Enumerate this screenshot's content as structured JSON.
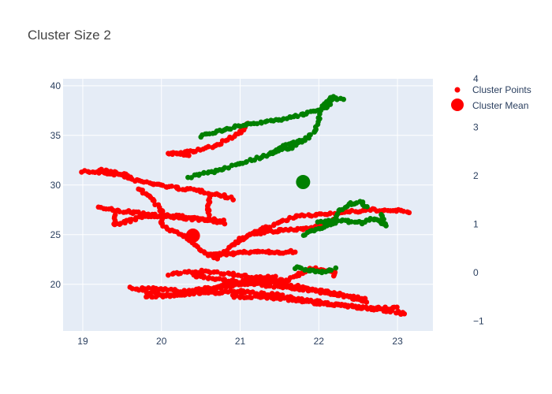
{
  "chart_data": {
    "type": "scatter",
    "title": "Cluster Size 2",
    "xlabel": "",
    "ylabel": "",
    "xlim": [
      18.75,
      23.45
    ],
    "ylim": [
      15.3,
      40.7
    ],
    "y2lim": [
      -1.2,
      4.0
    ],
    "x_ticks": [
      19,
      20,
      21,
      22,
      23
    ],
    "y_ticks": [
      20,
      25,
      30,
      35,
      40
    ],
    "y2_ticks": [
      -1,
      0,
      1,
      2,
      3,
      4
    ],
    "grid": true,
    "legend_position": "top-right",
    "legend": [
      "Cluster Points",
      "Cluster Mean"
    ],
    "colors": {
      "red": "#ff0000",
      "green": "#008000",
      "plot_bg": "#e5ecf6",
      "grid": "#ffffff"
    },
    "series": [
      {
        "name": "Cluster Points",
        "color": "#ff0000",
        "mode": "markers",
        "paths": [
          [
            [
              19.0,
              31.4
            ],
            [
              19.3,
              31.2
            ],
            [
              19.5,
              31.0
            ],
            [
              19.6,
              30.6
            ],
            [
              19.9,
              30.1
            ],
            [
              20.2,
              29.7
            ],
            [
              20.5,
              29.4
            ],
            [
              20.8,
              28.9
            ],
            [
              20.9,
              28.6
            ]
          ],
          [
            [
              19.2,
              31.6
            ],
            [
              19.4,
              31.3
            ],
            [
              19.6,
              30.9
            ]
          ],
          [
            [
              19.2,
              27.7
            ],
            [
              19.45,
              27.4
            ],
            [
              19.9,
              27.0
            ],
            [
              20.3,
              26.8
            ],
            [
              20.8,
              26.4
            ]
          ],
          [
            [
              19.4,
              27.3
            ],
            [
              19.4,
              26.0
            ],
            [
              19.6,
              26.4
            ],
            [
              19.8,
              26.9
            ],
            [
              20.4,
              26.6
            ],
            [
              20.8,
              26.2
            ]
          ],
          [
            [
              19.7,
              29.7
            ],
            [
              19.9,
              28.5
            ],
            [
              20.0,
              27.3
            ],
            [
              20.0,
              26.1
            ],
            [
              20.1,
              25.5
            ],
            [
              20.3,
              24.8
            ],
            [
              20.4,
              24.2
            ],
            [
              20.5,
              23.4
            ],
            [
              20.7,
              22.6
            ]
          ],
          [
            [
              20.1,
              33.1
            ],
            [
              20.4,
              33.4
            ],
            [
              20.7,
              34.0
            ],
            [
              21.0,
              35.3
            ],
            [
              21.1,
              36.2
            ]
          ],
          [
            [
              20.1,
              33.2
            ],
            [
              20.35,
              33.0
            ]
          ],
          [
            [
              20.6,
              28.8
            ],
            [
              20.6,
              27.6
            ],
            [
              20.6,
              26.5
            ]
          ],
          [
            [
              20.7,
              22.7
            ],
            [
              20.9,
              23.9
            ],
            [
              21.0,
              24.6
            ],
            [
              21.2,
              25.1
            ],
            [
              21.5,
              25.4
            ],
            [
              21.8,
              25.6
            ],
            [
              22.0,
              26.0
            ],
            [
              22.2,
              26.5
            ]
          ],
          [
            [
              21.0,
              24.5
            ],
            [
              21.3,
              25.6
            ],
            [
              21.7,
              26.8
            ],
            [
              21.95,
              27.0
            ],
            [
              22.4,
              27.3
            ],
            [
              22.7,
              27.5
            ],
            [
              23.0,
              27.4
            ],
            [
              23.15,
              27.3
            ]
          ],
          [
            [
              20.1,
              21.0
            ],
            [
              20.5,
              21.3
            ],
            [
              20.9,
              21.0
            ],
            [
              21.2,
              20.7
            ],
            [
              21.4,
              20.4
            ],
            [
              21.6,
              20.4
            ],
            [
              21.75,
              21.0
            ],
            [
              21.9,
              21.6
            ],
            [
              22.2,
              21.3
            ],
            [
              22.2,
              20.9
            ]
          ],
          [
            [
              20.6,
              22.9
            ],
            [
              20.9,
              23.1
            ],
            [
              21.2,
              23.3
            ],
            [
              21.5,
              23.2
            ],
            [
              21.7,
              23.3
            ]
          ],
          [
            [
              19.6,
              19.6
            ],
            [
              19.85,
              19.2
            ],
            [
              20.1,
              18.9
            ],
            [
              20.5,
              19.1
            ],
            [
              21.0,
              19.3
            ],
            [
              21.5,
              18.9
            ],
            [
              22.0,
              18.2
            ],
            [
              22.5,
              17.7
            ],
            [
              23.0,
              17.2
            ],
            [
              23.1,
              17.0
            ]
          ],
          [
            [
              19.75,
              19.6
            ],
            [
              20.0,
              19.5
            ],
            [
              20.3,
              19.3
            ],
            [
              20.6,
              19.6
            ],
            [
              20.9,
              20.1
            ],
            [
              21.2,
              20.6
            ],
            [
              21.45,
              20.8
            ]
          ],
          [
            [
              19.8,
              18.8
            ],
            [
              20.2,
              18.9
            ],
            [
              20.6,
              19.5
            ],
            [
              20.9,
              19.9
            ],
            [
              21.3,
              20.3
            ],
            [
              21.6,
              20.0
            ],
            [
              22.1,
              19.2
            ],
            [
              22.6,
              18.6
            ]
          ],
          [
            [
              20.4,
              20.9
            ],
            [
              20.8,
              20.4
            ],
            [
              21.2,
              20.0
            ],
            [
              21.7,
              19.6
            ],
            [
              22.2,
              19.0
            ],
            [
              22.6,
              18.3
            ]
          ],
          [
            [
              20.9,
              18.8
            ],
            [
              21.5,
              18.6
            ],
            [
              22.1,
              18.0
            ],
            [
              22.6,
              17.6
            ],
            [
              23.0,
              17.6
            ]
          ]
        ]
      },
      {
        "name": "Cluster Points",
        "color": "#008000",
        "mode": "markers",
        "paths": [
          [
            [
              20.35,
              30.8
            ],
            [
              20.7,
              31.4
            ],
            [
              21.0,
              32.2
            ],
            [
              21.3,
              32.9
            ],
            [
              21.5,
              33.6
            ],
            [
              21.65,
              33.8
            ],
            [
              21.8,
              34.4
            ],
            [
              21.95,
              35.4
            ],
            [
              22.0,
              36.6
            ],
            [
              22.05,
              38.0
            ],
            [
              22.15,
              38.8
            ],
            [
              22.3,
              38.6
            ]
          ],
          [
            [
              20.5,
              34.9
            ],
            [
              20.8,
              35.6
            ],
            [
              21.1,
              36.1
            ],
            [
              21.5,
              36.6
            ],
            [
              21.8,
              37.1
            ],
            [
              22.1,
              37.9
            ],
            [
              22.2,
              38.9
            ]
          ],
          [
            [
              21.4,
              33.2
            ],
            [
              21.55,
              33.9
            ],
            [
              21.75,
              34.6
            ]
          ],
          [
            [
              21.8,
              25.0
            ],
            [
              22.0,
              25.6
            ],
            [
              22.2,
              26.2
            ],
            [
              22.25,
              27.4
            ],
            [
              22.4,
              28.1
            ],
            [
              22.55,
              28.3
            ],
            [
              22.6,
              27.7
            ]
          ],
          [
            [
              22.0,
              26.3
            ],
            [
              22.3,
              26.4
            ],
            [
              22.55,
              26.2
            ],
            [
              22.7,
              26.6
            ],
            [
              22.85,
              26.0
            ],
            [
              22.8,
              27.1
            ]
          ],
          [
            [
              21.7,
              21.7
            ],
            [
              21.9,
              21.4
            ],
            [
              22.05,
              21.2
            ],
            [
              22.2,
              21.6
            ]
          ]
        ]
      },
      {
        "name": "Cluster Mean",
        "color": "#ff0000",
        "mode": "markers",
        "size": "large",
        "x": [
          20.4
        ],
        "y": [
          24.9
        ]
      },
      {
        "name": "Cluster Mean",
        "color": "#008000",
        "mode": "markers",
        "size": "large",
        "x": [
          21.8
        ],
        "y": [
          30.3
        ]
      }
    ]
  }
}
